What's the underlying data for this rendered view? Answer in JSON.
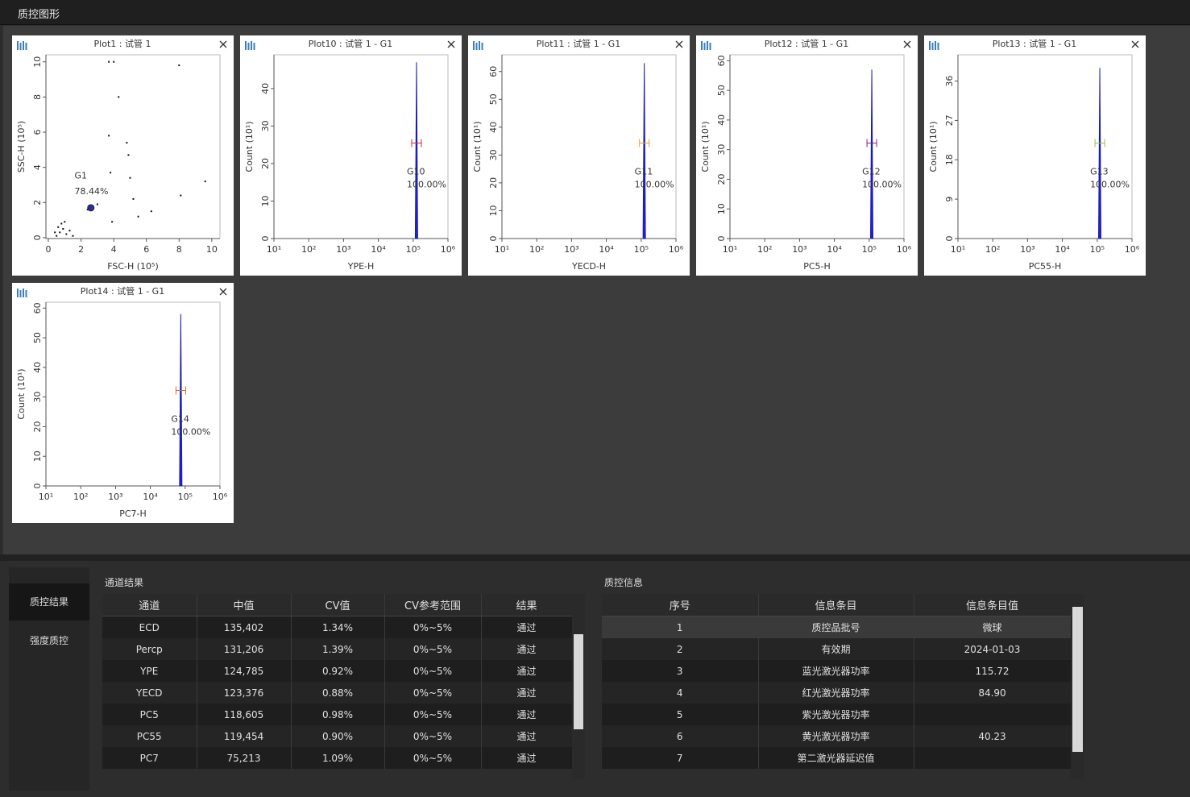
{
  "header": {
    "title": "质控图形"
  },
  "plots": [
    {
      "type": "scatter",
      "title": "Plot1 : 试管 1",
      "x_label": "FSC-H (10⁵)",
      "y_label": "SSC-H (10⁵)",
      "xlim": [
        -0.15,
        10.5
      ],
      "ylim": [
        -0.05,
        10.4
      ],
      "xticks": [
        0,
        2,
        4,
        6,
        8,
        10
      ],
      "yticks": [
        0,
        2,
        4,
        6,
        8,
        10
      ],
      "x": [
        0.5,
        0.7,
        0.9,
        1.1,
        0.6,
        1.3,
        0.8,
        1.5,
        0.4,
        1.0,
        2.5,
        2.6,
        2.7,
        3.0,
        2.4,
        3.8,
        4.3,
        4.8,
        4.9,
        5.0,
        3.7,
        5.2,
        6.3,
        8.1,
        8.0,
        9.6,
        4.0,
        3.7,
        3.9,
        5.5
      ],
      "y": [
        0.1,
        0.3,
        0.5,
        0.2,
        0.6,
        0.4,
        0.8,
        0.1,
        0.3,
        0.9,
        1.7,
        1.6,
        1.8,
        1.9,
        1.6,
        3.7,
        8.0,
        5.4,
        4.7,
        3.4,
        5.8,
        2.2,
        1.5,
        2.4,
        9.8,
        3.2,
        10.0,
        10.0,
        0.9,
        1.2
      ],
      "gate": {
        "name": "G1",
        "percent": "78.44%",
        "color": "#2a2aa8"
      }
    },
    {
      "type": "histogram",
      "title": "Plot10 : 试管 1 - G1",
      "x_label": "YPE-H",
      "y_label": "Count (10¹)",
      "log_x": true,
      "xlim": [
        10,
        1000000
      ],
      "ylim": [
        0,
        49
      ],
      "xticks": [
        {
          "value": 10,
          "label": "10¹"
        },
        {
          "value": 100,
          "label": "10²"
        },
        {
          "value": 1000,
          "label": "10³"
        },
        {
          "value": 10000,
          "label": "10⁴"
        },
        {
          "value": 100000,
          "label": "10⁵"
        },
        {
          "value": 1000000,
          "label": "10⁶"
        }
      ],
      "yticks": [
        0,
        10,
        20,
        30,
        40
      ],
      "peak": {
        "x": 125000,
        "count": 47
      },
      "gate": {
        "name": "G10",
        "percent": "100.00%",
        "color": "#d02828"
      }
    },
    {
      "type": "histogram",
      "title": "Plot11 : 试管 1 - G1",
      "x_label": "YECD-H",
      "y_label": "Count (10¹)",
      "log_x": true,
      "xlim": [
        10,
        1000000
      ],
      "ylim": [
        0,
        66
      ],
      "xticks": [
        {
          "value": 10,
          "label": "10¹"
        },
        {
          "value": 100,
          "label": "10²"
        },
        {
          "value": 1000,
          "label": "10³"
        },
        {
          "value": 10000,
          "label": "10⁴"
        },
        {
          "value": 100000,
          "label": "10⁵"
        },
        {
          "value": 1000000,
          "label": "10⁶"
        }
      ],
      "yticks": [
        0,
        10,
        20,
        30,
        40,
        50,
        60
      ],
      "peak": {
        "x": 123000,
        "count": 63
      },
      "gate": {
        "name": "G11",
        "percent": "100.00%",
        "color": "#e8a020"
      }
    },
    {
      "type": "histogram",
      "title": "Plot12 : 试管 1 - G1",
      "x_label": "PC5-H",
      "y_label": "Count (10¹)",
      "log_x": true,
      "xlim": [
        10,
        1000000
      ],
      "ylim": [
        0,
        62
      ],
      "xticks": [
        {
          "value": 10,
          "label": "10¹"
        },
        {
          "value": 100,
          "label": "10²"
        },
        {
          "value": 1000,
          "label": "10³"
        },
        {
          "value": 10000,
          "label": "10⁴"
        },
        {
          "value": 100000,
          "label": "10⁵"
        },
        {
          "value": 1000000,
          "label": "10⁶"
        }
      ],
      "yticks": [
        0,
        10,
        20,
        30,
        40,
        50,
        60
      ],
      "peak": {
        "x": 119000,
        "count": 57
      },
      "gate": {
        "name": "G12",
        "percent": "100.00%",
        "color": "#7a2080"
      }
    },
    {
      "type": "histogram",
      "title": "Plot13 : 试管 1 - G1",
      "x_label": "PC55-H",
      "y_label": "Count (10¹)",
      "log_x": true,
      "xlim": [
        10,
        1000000
      ],
      "ylim": [
        0,
        42
      ],
      "xticks": [
        {
          "value": 10,
          "label": "10¹"
        },
        {
          "value": 100,
          "label": "10²"
        },
        {
          "value": 1000,
          "label": "10³"
        },
        {
          "value": 10000,
          "label": "10⁴"
        },
        {
          "value": 100000,
          "label": "10⁵"
        },
        {
          "value": 1000000,
          "label": "10⁶"
        }
      ],
      "yticks": [
        0,
        9,
        18,
        27,
        36
      ],
      "peak": {
        "x": 119000,
        "count": 39
      },
      "gate": {
        "name": "G13",
        "percent": "100.00%",
        "color": "#8cc63f"
      }
    },
    {
      "type": "histogram",
      "title": "Plot14 : 试管 1 - G1",
      "x_label": "PC7-H",
      "y_label": "Count (10¹)",
      "log_x": true,
      "xlim": [
        10,
        1000000
      ],
      "ylim": [
        0,
        62
      ],
      "xticks": [
        {
          "value": 10,
          "label": "10¹"
        },
        {
          "value": 100,
          "label": "10²"
        },
        {
          "value": 1000,
          "label": "10³"
        },
        {
          "value": 10000,
          "label": "10⁴"
        },
        {
          "value": 100000,
          "label": "10⁵"
        },
        {
          "value": 1000000,
          "label": "10⁶"
        }
      ],
      "yticks": [
        0,
        10,
        20,
        30,
        40,
        50,
        60
      ],
      "peak": {
        "x": 75000,
        "count": 58
      },
      "gate": {
        "name": "G14",
        "percent": "100.00%",
        "color": "#d06a20"
      }
    }
  ],
  "sidebar": {
    "tabs": [
      "质控结果",
      "强度质控"
    ]
  },
  "channel_results": {
    "title": "通道结果",
    "columns": [
      "通道",
      "中值",
      "CV值",
      "CV参考范围",
      "结果"
    ],
    "rows": [
      [
        "ECD",
        "135,402",
        "1.34%",
        "0%~5%",
        "通过"
      ],
      [
        "Percp",
        "131,206",
        "1.39%",
        "0%~5%",
        "通过"
      ],
      [
        "YPE",
        "124,785",
        "0.92%",
        "0%~5%",
        "通过"
      ],
      [
        "YECD",
        "123,376",
        "0.88%",
        "0%~5%",
        "通过"
      ],
      [
        "PC5",
        "118,605",
        "0.98%",
        "0%~5%",
        "通过"
      ],
      [
        "PC55",
        "119,454",
        "0.90%",
        "0%~5%",
        "通过"
      ],
      [
        "PC7",
        "75,213",
        "1.09%",
        "0%~5%",
        "通过"
      ]
    ]
  },
  "qc_info": {
    "title": "质控信息",
    "columns": [
      "序号",
      "信息条目",
      "信息条目值"
    ],
    "rows": [
      [
        "1",
        "质控品批号",
        "微球"
      ],
      [
        "2",
        "有效期",
        "2024-01-03"
      ],
      [
        "3",
        "蓝光激光器功率",
        "115.72"
      ],
      [
        "4",
        "红光激光器功率",
        "84.90"
      ],
      [
        "5",
        "紫光激光器功率",
        null
      ],
      [
        "6",
        "黄光激光器功率",
        "40.23"
      ],
      [
        "7",
        "第二激光器延迟值",
        null
      ]
    ]
  }
}
